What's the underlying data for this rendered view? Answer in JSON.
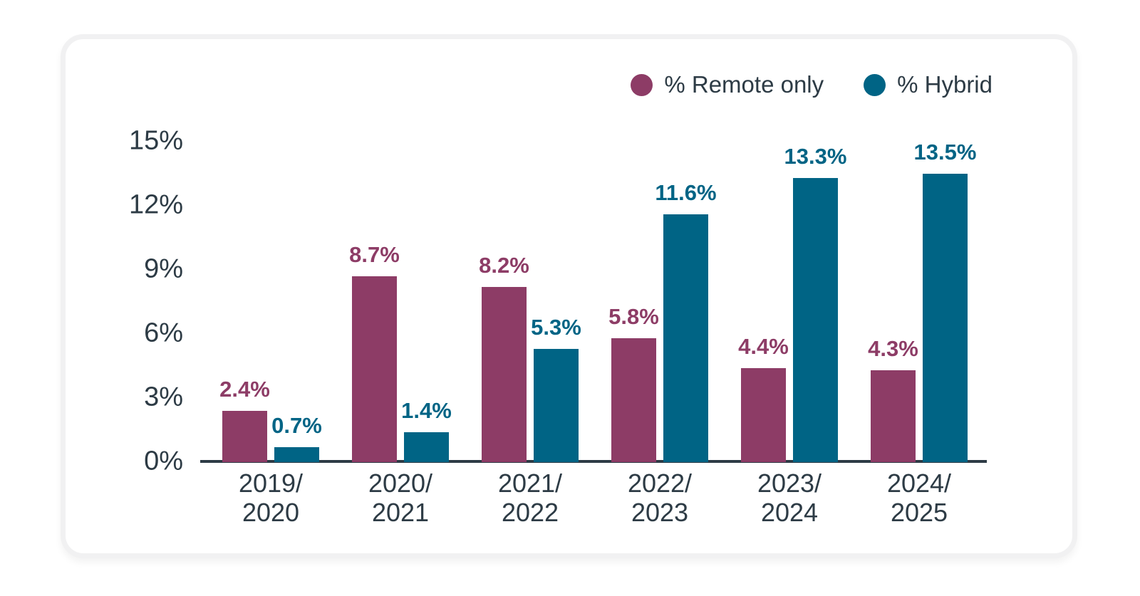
{
  "page": {
    "background": "#ffffff"
  },
  "card": {
    "background": "#ffffff",
    "border_color": "#f1f1f2"
  },
  "legend": {
    "items": [
      {
        "label": "% Remote only",
        "color": "#8d3c66"
      },
      {
        "label": "% Hybrid",
        "color": "#006485"
      }
    ]
  },
  "chart_data": {
    "type": "bar",
    "categories": [
      "2019/2020",
      "2020/2021",
      "2021/2022",
      "2022/2023",
      "2023/2024",
      "2024/2025"
    ],
    "category_lines": [
      [
        "2019/",
        "2020"
      ],
      [
        "2020/",
        "2021"
      ],
      [
        "2021/",
        "2022"
      ],
      [
        "2022/",
        "2023"
      ],
      [
        "2023/",
        "2024"
      ],
      [
        "2024/",
        "2025"
      ]
    ],
    "series": [
      {
        "name": "% Remote only",
        "key": "remote",
        "color": "#8d3c66",
        "values": [
          2.4,
          8.7,
          8.2,
          5.8,
          4.4,
          4.3
        ]
      },
      {
        "name": "% Hybrid",
        "key": "hybrid",
        "color": "#006485",
        "values": [
          0.7,
          1.4,
          5.3,
          11.6,
          13.3,
          13.5
        ]
      }
    ],
    "value_labels": {
      "remote": [
        "2.4%",
        "8.7%",
        "8.2%",
        "5.8%",
        "4.4%",
        "4.3%"
      ],
      "hybrid": [
        "0.7%",
        "1.4%",
        "5.3%",
        "11.6%",
        "13.3%",
        "13.5%"
      ]
    },
    "y_ticks": [
      0,
      3,
      6,
      9,
      12,
      15
    ],
    "y_tick_labels": [
      "0%",
      "3%",
      "6%",
      "9%",
      "12%",
      "15%"
    ],
    "ylim": [
      0,
      15
    ],
    "grid": false,
    "legend_position": "top-right",
    "axis_color": "#2d3b45",
    "text_color": "#2d3b45",
    "title": "",
    "xlabel": "",
    "ylabel": ""
  }
}
